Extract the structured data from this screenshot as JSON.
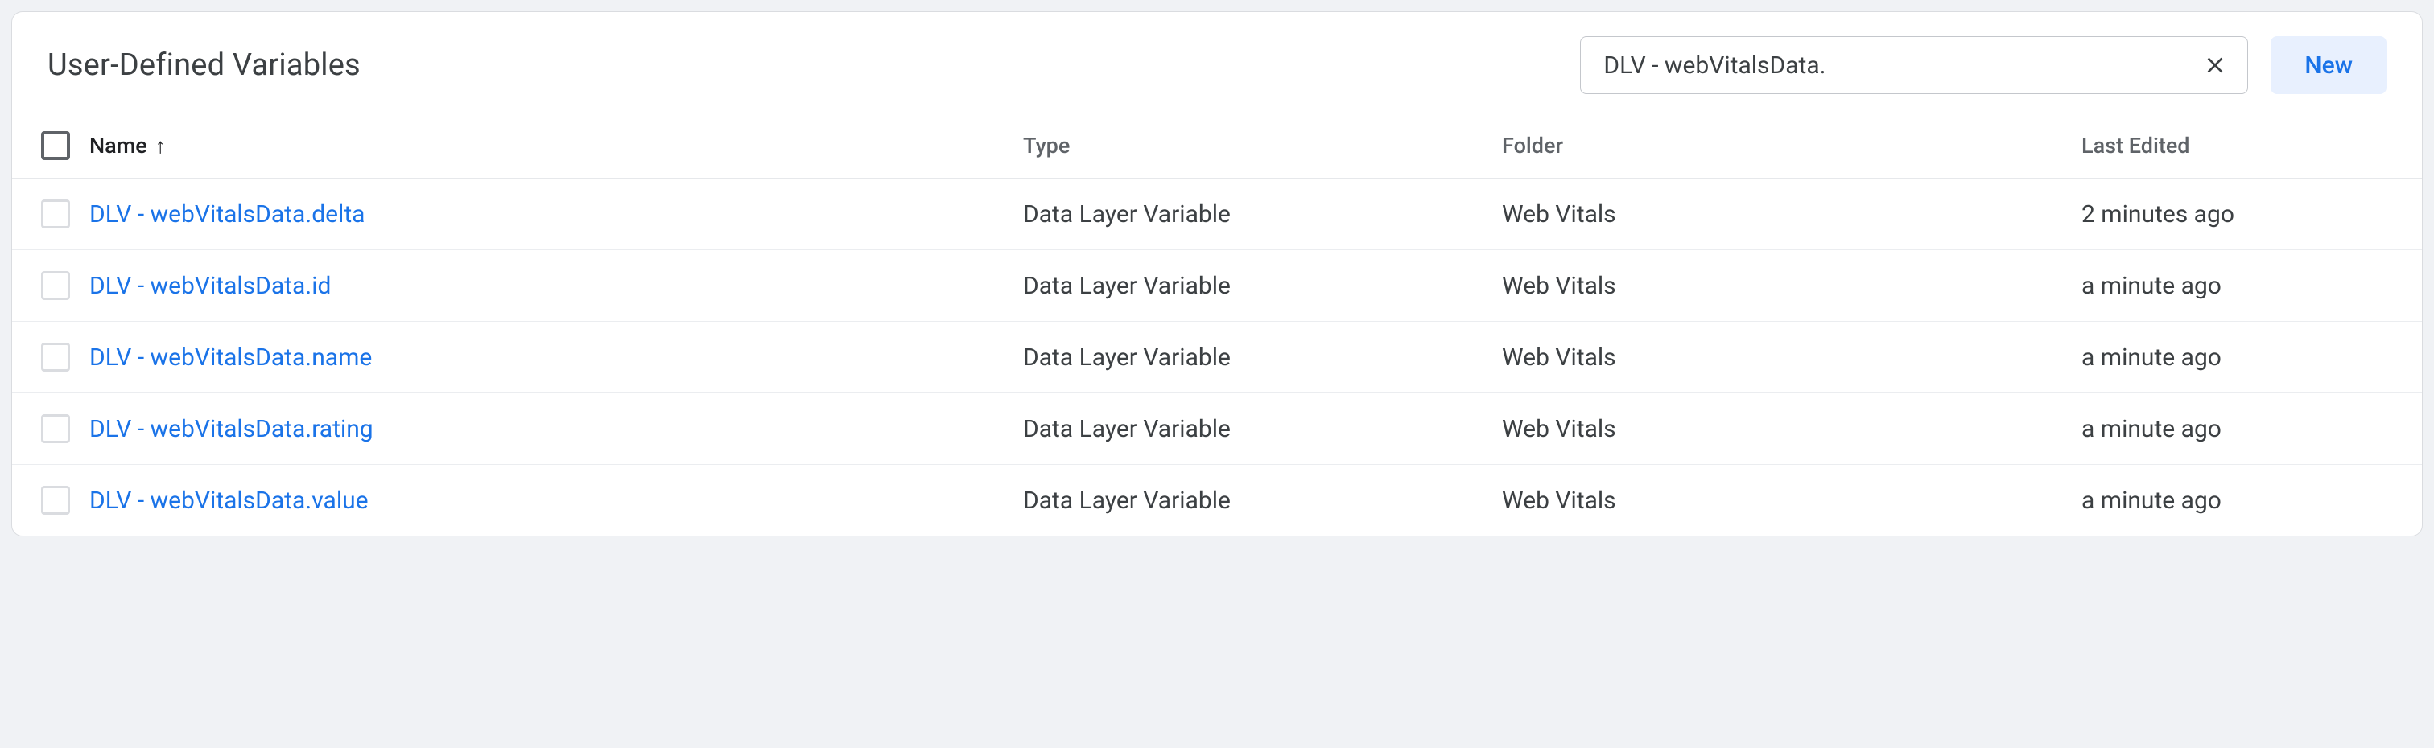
{
  "panel": {
    "title": "User-Defined Variables",
    "new_label": "New"
  },
  "search": {
    "value": "DLV - webVitalsData."
  },
  "columns": {
    "name": "Name",
    "type": "Type",
    "folder": "Folder",
    "edited": "Last Edited",
    "sort": "name",
    "sort_dir": "asc"
  },
  "rows": [
    {
      "name": "DLV - webVitalsData.delta",
      "type": "Data Layer Variable",
      "folder": "Web Vitals",
      "edited": "2 minutes ago"
    },
    {
      "name": "DLV - webVitalsData.id",
      "type": "Data Layer Variable",
      "folder": "Web Vitals",
      "edited": "a minute ago"
    },
    {
      "name": "DLV - webVitalsData.name",
      "type": "Data Layer Variable",
      "folder": "Web Vitals",
      "edited": "a minute ago"
    },
    {
      "name": "DLV - webVitalsData.rating",
      "type": "Data Layer Variable",
      "folder": "Web Vitals",
      "edited": "a minute ago"
    },
    {
      "name": "DLV - webVitalsData.value",
      "type": "Data Layer Variable",
      "folder": "Web Vitals",
      "edited": "a minute ago"
    }
  ]
}
